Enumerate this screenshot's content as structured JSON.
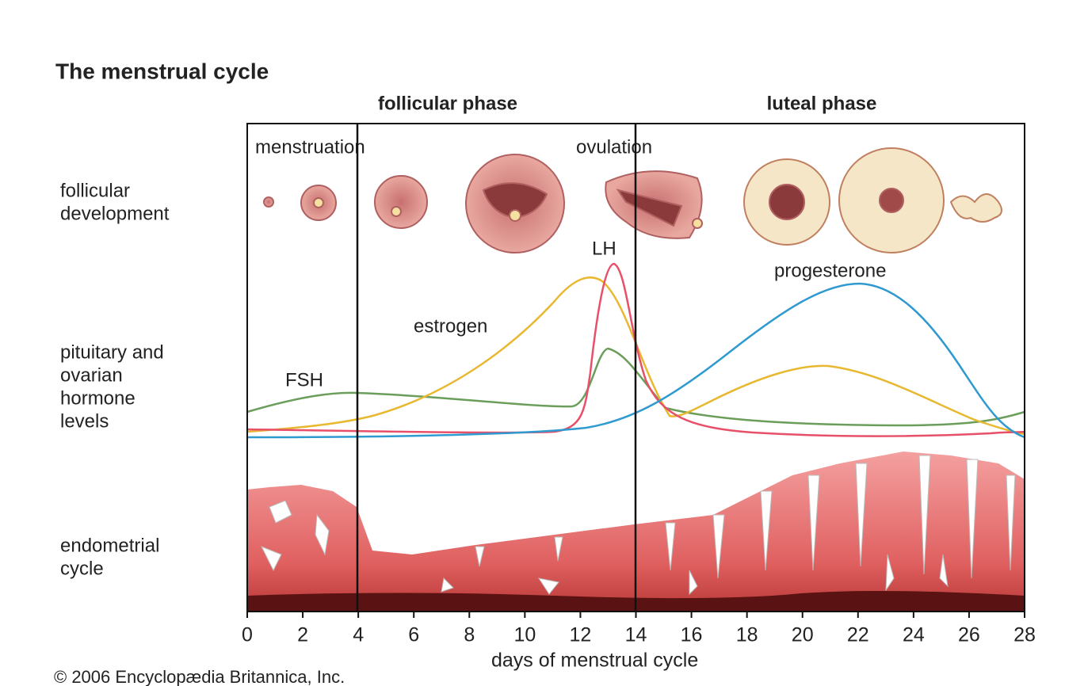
{
  "title": "The menstrual cycle",
  "phases": [
    "follicular phase",
    "luteal phase"
  ],
  "events": [
    "menstruation",
    "ovulation"
  ],
  "rows": [
    [
      "follicular",
      "development"
    ],
    [
      "pituitary and",
      "ovarian",
      "hormone",
      "levels"
    ],
    [
      "endometrial",
      "cycle"
    ]
  ],
  "hormones": [
    "LH",
    "progesterone",
    "estrogen",
    "FSH"
  ],
  "x_axis": {
    "label": "days of menstrual cycle",
    "lim": [
      0,
      28
    ],
    "ticks": [
      0,
      2,
      4,
      6,
      8,
      10,
      12,
      14,
      16,
      18,
      20,
      22,
      24,
      26,
      28
    ]
  },
  "credit": "© 2006 Encyclopædia Britannica, Inc."
}
